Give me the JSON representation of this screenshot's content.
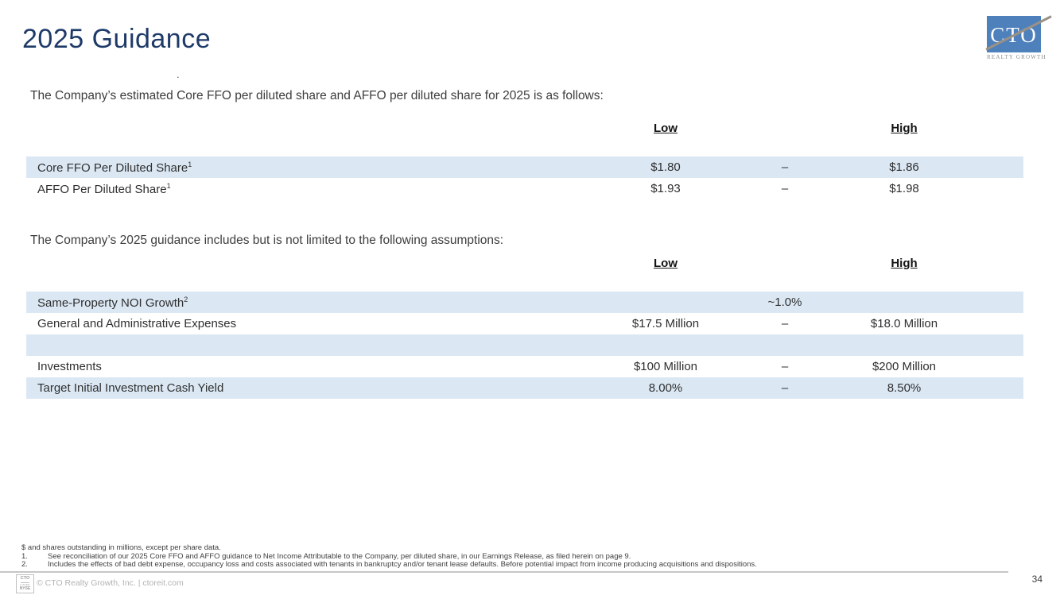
{
  "slide": {
    "title": "2025 Guidance",
    "page_number": "34",
    "stray_mark": "."
  },
  "logo": {
    "acronym": "CTO",
    "caption": "REALTY GROWTH",
    "box_color": "#4e80bc",
    "slash_color": "#9a9185"
  },
  "intro1": "The Company’s estimated Core FFO per diluted share and AFFO per diluted share for 2025 is as follows:",
  "intro2": "The Company’s 2025 guidance includes but is not limited to the following assumptions:",
  "table1": {
    "headers": {
      "low": "Low",
      "high": "High"
    },
    "rows": [
      {
        "label": "Core FFO Per Diluted Share",
        "sup": "1",
        "low": "$1.80",
        "dash": "–",
        "high": "$1.86"
      },
      {
        "label": "AFFO Per Diluted Share",
        "sup": "1",
        "low": "$1.93",
        "dash": "–",
        "high": "$1.98"
      }
    ]
  },
  "table2": {
    "headers": {
      "low": "Low",
      "high": "High"
    },
    "rows": [
      {
        "label": "Same-Property NOI Growth",
        "sup": "2",
        "low": "",
        "dash": "~1.0%",
        "high": ""
      },
      {
        "label": "General and Administrative Expenses",
        "sup": "",
        "low": "$17.5 Million",
        "dash": "–",
        "high": "$18.0 Million"
      },
      {
        "label": "",
        "sup": "",
        "low": "",
        "dash": "",
        "high": ""
      },
      {
        "label": "Investments",
        "sup": "",
        "low": "$100 Million",
        "dash": "–",
        "high": "$200 Million"
      },
      {
        "label": "Target Initial Investment Cash Yield",
        "sup": "",
        "low": "8.00%",
        "dash": "–",
        "high": "8.50%"
      }
    ]
  },
  "footnotes": {
    "preamble": "$ and shares outstanding in millions, except per share data.",
    "items": [
      {
        "num": "1.",
        "text": "See reconciliation of our 2025 Core FFO and AFFO guidance to Net Income Attributable to the Company, per diluted share, in our Earnings Release, as filed herein on page 9."
      },
      {
        "num": "2.",
        "text": "Includes the effects of bad debt expense, occupancy loss and costs associated with tenants in bankruptcy and/or tenant lease defaults. Before potential impact from income producing acquisitions and dispositions."
      }
    ]
  },
  "footer": {
    "badge": {
      "line1": "CTO",
      "line2": "LISTED",
      "line3": "NYSE"
    },
    "copyright": "© CTO Realty Growth, Inc. | ctoreit.com"
  },
  "colors": {
    "accent_navy": "#1e3a68",
    "row_shade": "#dbe8f4",
    "logo_blue": "#4e80bc"
  }
}
